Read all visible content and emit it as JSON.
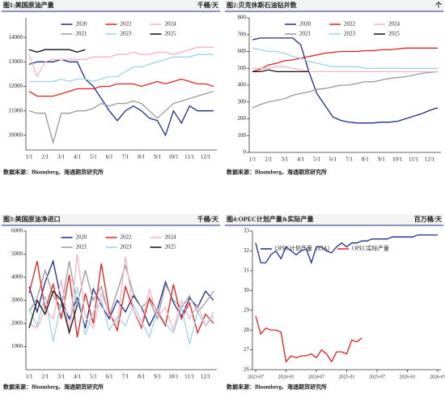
{
  "chart_data": [
    {
      "type": "line",
      "title": "图1:美国原油产量",
      "unit": "千桶/天",
      "source": "数据来源：Bloomberg、海通期货研究所",
      "legend": "upper center",
      "categories": [
        "1/1",
        null,
        "2/1",
        null,
        "3/1",
        null,
        "4/1",
        null,
        "5/1",
        null,
        "6/1",
        null,
        "7/1",
        null,
        "8/1",
        null,
        "9/1",
        null,
        "10/1",
        null,
        "11/1",
        null,
        "12/1",
        null
      ],
      "ylim": [
        9400,
        14800
      ],
      "yticks": [
        10000,
        11000,
        12000,
        13000,
        14000
      ],
      "series": [
        {
          "name": "2020",
          "color": "#1f2a8a",
          "values": [
            12900,
            13000,
            13000,
            13000,
            13100,
            13000,
            13000,
            12300,
            12000,
            11500,
            11000,
            10600,
            11000,
            11200,
            11000,
            10700,
            10600,
            10000,
            11000,
            10500,
            11200,
            11000,
            11000,
            11000
          ]
        },
        {
          "name": "2021",
          "color": "#9a9a9a",
          "values": [
            11000,
            10900,
            10900,
            9700,
            10900,
            10900,
            11000,
            11000,
            11100,
            11300,
            11200,
            11300,
            11300,
            11400,
            11300,
            11000,
            10700,
            11000,
            11300,
            11400,
            11500,
            11600,
            11700,
            11800
          ]
        },
        {
          "name": "2022",
          "color": "#e02020",
          "values": [
            11800,
            11600,
            11600,
            11600,
            11700,
            11800,
            11900,
            11900,
            11900,
            12000,
            12000,
            12100,
            12100,
            12100,
            12000,
            12100,
            12200,
            12100,
            12200,
            12300,
            12200,
            12100,
            12100,
            12000
          ]
        },
        {
          "name": "2023",
          "color": "#9fd3e6",
          "values": [
            12200,
            12200,
            12200,
            12200,
            12300,
            12200,
            12300,
            12300,
            12200,
            12300,
            12400,
            12400,
            12600,
            12800,
            12800,
            12900,
            13000,
            13100,
            13200,
            13200,
            13200,
            13300,
            13300,
            13300
          ]
        },
        {
          "name": "2024",
          "color": "#f5b3c6",
          "values": [
            13300,
            12400,
            13000,
            13100,
            13100,
            13100,
            13100,
            13100,
            13200,
            13200,
            13200,
            13300,
            13300,
            13400,
            13300,
            13300,
            13400,
            13400,
            13300,
            13400,
            13500,
            13600,
            13600,
            13600
          ]
        },
        {
          "name": "2025",
          "color": "#111111",
          "values": [
            13500,
            13400,
            13500,
            13500,
            13500,
            13500,
            13400,
            13500,
            null,
            null,
            null,
            null,
            null,
            null,
            null,
            null,
            null,
            null,
            null,
            null,
            null,
            null,
            null,
            null
          ]
        }
      ]
    },
    {
      "type": "line",
      "title": "图2:贝克休斯石油钻井数",
      "unit": "个",
      "source": "数据来源：Bloomberg、海通期货研究所",
      "legend": "upper center",
      "categories": [
        "1/1",
        null,
        "2/1",
        null,
        "3/1",
        null,
        "4/1",
        null,
        "5/1",
        null,
        "6/1",
        null,
        "7/1",
        null,
        "8/1",
        null,
        "9/1",
        null,
        "10/1",
        null,
        "11/1",
        null,
        "12/1",
        null
      ],
      "ylim": [
        0,
        800
      ],
      "yticks": [
        0,
        100,
        200,
        300,
        400,
        500,
        600,
        700,
        800
      ],
      "series": [
        {
          "name": "2020",
          "color": "#1f2a8a",
          "values": [
            670,
            680,
            680,
            680,
            680,
            680,
            640,
            480,
            350,
            280,
            210,
            190,
            180,
            175,
            175,
            175,
            180,
            180,
            185,
            200,
            215,
            230,
            250,
            265
          ]
        },
        {
          "name": "2021",
          "color": "#9a9a9a",
          "values": [
            265,
            285,
            300,
            310,
            320,
            340,
            350,
            360,
            375,
            380,
            390,
            400,
            400,
            410,
            420,
            420,
            430,
            440,
            445,
            450,
            460,
            470,
            475,
            480
          ]
        },
        {
          "name": "2022",
          "color": "#e02020",
          "values": [
            480,
            495,
            520,
            530,
            545,
            550,
            560,
            570,
            580,
            590,
            595,
            600,
            600,
            600,
            605,
            605,
            610,
            610,
            615,
            620,
            620,
            620,
            620,
            620
          ]
        },
        {
          "name": "2023",
          "color": "#9fd3e6",
          "values": [
            620,
            610,
            600,
            600,
            590,
            570,
            560,
            540,
            530,
            520,
            510,
            510,
            510,
            510,
            500,
            500,
            500,
            500,
            500,
            500,
            500,
            500,
            500,
            500
          ]
        },
        {
          "name": "2024",
          "color": "#f5b3c6",
          "values": [
            500,
            500,
            500,
            510,
            510,
            500,
            490,
            480,
            480,
            480,
            480,
            480,
            480,
            480,
            480,
            480,
            480,
            480,
            480,
            480,
            480,
            480,
            480,
            480
          ]
        },
        {
          "name": "2025",
          "color": "#111111",
          "values": [
            480,
            480,
            490,
            480,
            480,
            480,
            480,
            480,
            null,
            null,
            null,
            null,
            null,
            null,
            null,
            null,
            null,
            null,
            null,
            null,
            null,
            null,
            null,
            null
          ]
        }
      ]
    },
    {
      "type": "line",
      "title": "图3:美国原油净进口",
      "unit": "千桶/天",
      "source": "数据来源：Bloomberg、海通期货研究所",
      "legend": "upper center",
      "categories": [
        "1/1",
        null,
        "2/1",
        null,
        "3/1",
        null,
        "4/1",
        null,
        "5/1",
        null,
        "6/1",
        null,
        "7/1",
        null,
        "8/1",
        null,
        "9/1",
        null,
        "10/1",
        null,
        "11/1",
        null,
        "12/1",
        null
      ],
      "ylim": [
        0,
        6000
      ],
      "yticks": [
        1000,
        2000,
        3000,
        4000,
        5000,
        6000
      ],
      "series": [
        {
          "name": "2020",
          "color": "#1f2a8a",
          "values": [
            3600,
            2500,
            3800,
            4700,
            3000,
            2200,
            3100,
            1800,
            3500,
            2800,
            2200,
            3000,
            2500,
            3200,
            2700,
            1900,
            2600,
            3800,
            2900,
            2300,
            3100,
            2700,
            3400,
            3000
          ]
        },
        {
          "name": "2021",
          "color": "#9a9a9a",
          "values": [
            2500,
            3100,
            4300,
            3200,
            2700,
            4700,
            2800,
            4300,
            3000,
            3600,
            2300,
            3400,
            4500,
            3300,
            2700,
            3000,
            2200,
            3700,
            3000,
            2700,
            3200,
            2500,
            2900,
            3400
          ]
        },
        {
          "name": "2022",
          "color": "#e02020",
          "values": [
            3300,
            4700,
            2600,
            3700,
            2200,
            4100,
            1400,
            3300,
            2000,
            4600,
            2500,
            1700,
            3600,
            2600,
            1800,
            3100,
            2500,
            1900,
            3700,
            2200,
            2900,
            1600,
            2400,
            2000
          ]
        },
        {
          "name": "2023",
          "color": "#9fd3e6",
          "values": [
            2600,
            1900,
            3200,
            1200,
            2900,
            1800,
            3600,
            1500,
            2500,
            3000,
            1700,
            2300,
            1900,
            2800,
            2100,
            1400,
            2600,
            2000,
            1600,
            2700,
            1100,
            2500,
            1900,
            2300
          ]
        },
        {
          "name": "2024",
          "color": "#f5b3c6",
          "values": [
            2000,
            1800,
            2600,
            2200,
            3900,
            1600,
            5000,
            2300,
            1800,
            3300,
            2400,
            2000,
            4900,
            2600,
            1900,
            3500,
            2300,
            2700,
            1700,
            3000,
            2200,
            2800,
            1900,
            2500
          ]
        },
        {
          "name": "2025",
          "color": "#111111",
          "values": [
            1800,
            3000,
            2400,
            3400,
            3000,
            1600,
            2800,
            null,
            null,
            null,
            null,
            null,
            null,
            null,
            null,
            null,
            null,
            null,
            null,
            null,
            null,
            null,
            null,
            null
          ]
        }
      ]
    },
    {
      "type": "line",
      "title": "图4:OPEC计划产量&实际产量",
      "unit": "百万桶/天",
      "source": "数据来源：Bloomberg、海通期货研究所",
      "legend": "upper left",
      "x": [
        "2023-07",
        "2023-08",
        "2023-09",
        "2023-10",
        "2023-11",
        "2023-12",
        "2024-01",
        "2024-02",
        "2024-03",
        "2024-04",
        "2024-05",
        "2024-06",
        "2024-07",
        "2024-08",
        "2024-09",
        "2024-10",
        "2024-11",
        "2024-12",
        "2025-01",
        "2025-02",
        "2025-03",
        "2025-04",
        "2025-05",
        "2025-06",
        "2025-07",
        "2025-08",
        "2025-09",
        "2025-10",
        "2025-11",
        "2025-12",
        "2026-01",
        "2026-02",
        "2026-03",
        "2026-04",
        "2026-05",
        "2026-06",
        "2026-07"
      ],
      "xticks": [
        "2023-07",
        "2024-01",
        "2024-07",
        "2025-01",
        "2025-07",
        "2026-01",
        "2026-07"
      ],
      "ylim": [
        26,
        33
      ],
      "yticks": [
        26,
        27,
        28,
        29,
        30,
        31,
        32,
        33
      ],
      "series": [
        {
          "name": "OPEC计划产量（EIA）",
          "color": "#1f2a8a",
          "values": [
            32.4,
            31.4,
            31.4,
            31.8,
            32.0,
            31.6,
            32.2,
            32.0,
            31.8,
            32.0,
            32.1,
            31.4,
            32.2,
            32.2,
            32.0,
            31.9,
            32.2,
            32.4,
            32.2,
            32.4,
            32.4,
            32.5,
            32.5,
            32.6,
            32.6,
            32.6,
            32.6,
            32.7,
            32.7,
            32.7,
            32.7,
            32.7,
            32.8,
            32.8,
            32.8,
            32.8,
            32.8
          ]
        },
        {
          "name": "OPEC实际产量",
          "color": "#e02020",
          "values": [
            28.7,
            27.8,
            28.1,
            28.0,
            28.0,
            27.9,
            26.4,
            26.7,
            26.6,
            26.7,
            26.7,
            26.8,
            26.6,
            27.0,
            26.8,
            26.4,
            26.9,
            26.9,
            26.8,
            27.5,
            27.4,
            27.6,
            null,
            null,
            null,
            null,
            null,
            null,
            null,
            null,
            null,
            null,
            null,
            null,
            null,
            null,
            null
          ]
        }
      ]
    }
  ]
}
